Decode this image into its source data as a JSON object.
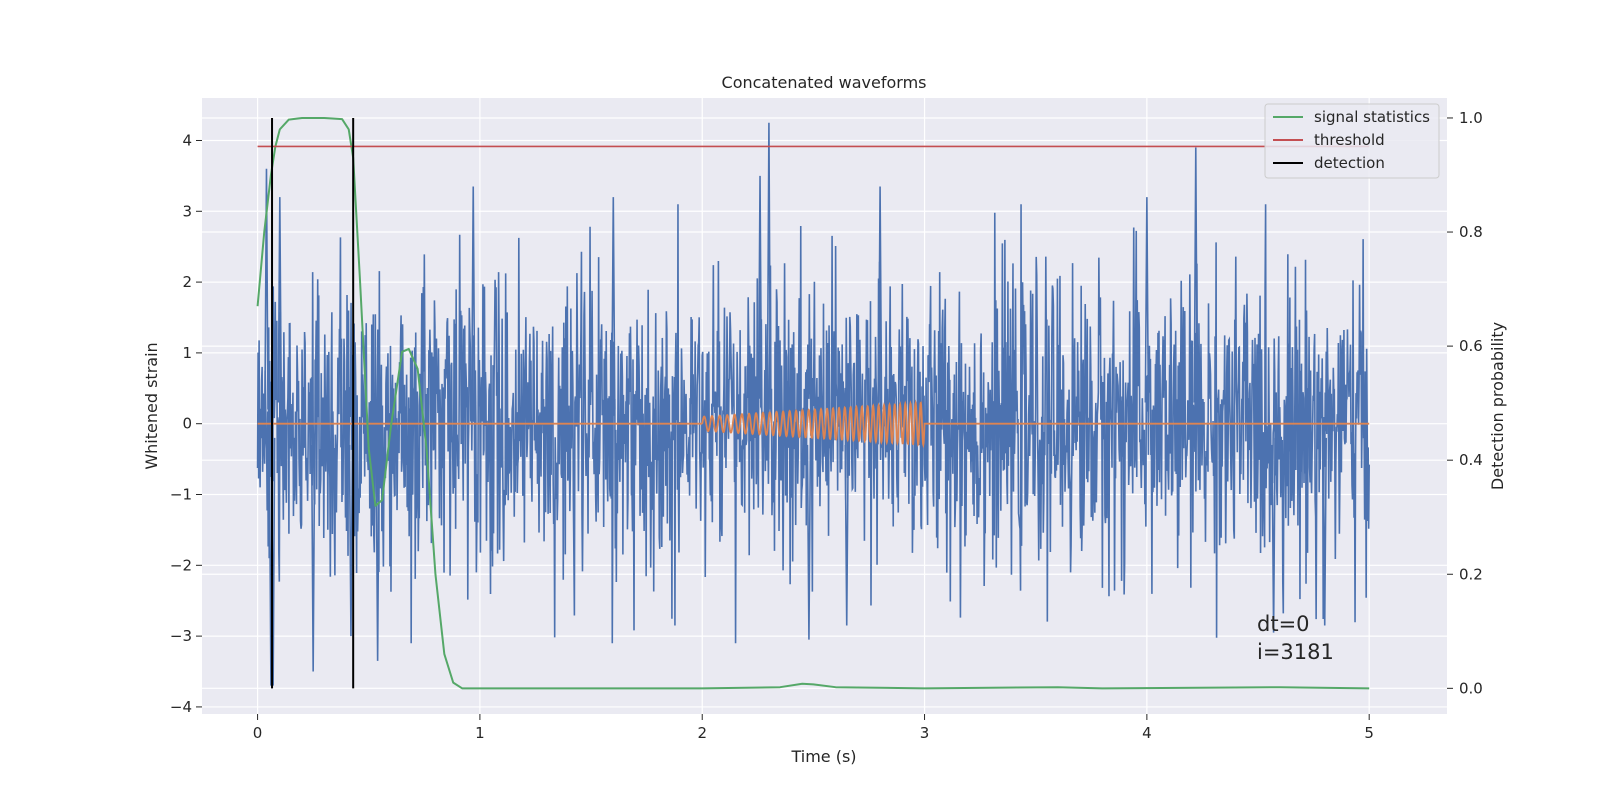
{
  "chart_data": {
    "type": "line",
    "title": "Concatenated waveforms",
    "xlabel": "Time (s)",
    "ylabel": "Whitened strain",
    "y2label": "Detection probability",
    "xlim": [
      -0.25,
      5.35
    ],
    "ylim": [
      -4.1,
      4.6
    ],
    "y2lim": [
      -0.045,
      1.035
    ],
    "xticks": [
      0,
      1,
      2,
      3,
      4,
      5
    ],
    "yticks": [
      -4,
      -3,
      -2,
      -1,
      0,
      1,
      2,
      3,
      4
    ],
    "y2ticks": [
      0.0,
      0.2,
      0.4,
      0.6,
      0.8,
      1.0
    ],
    "grid": true,
    "legend_position": "upper-right",
    "colors": {
      "background": "#eaeaf2",
      "noise": "#4c72b0",
      "injection": "#dd8452",
      "signal_statistics": "#55a868",
      "threshold": "#c44e52",
      "detection": "#000000"
    },
    "series": [
      {
        "name": "",
        "axis": "left",
        "description": "whitened strain noise, approx. Gaussian, std ~1.0",
        "x_range": [
          0,
          5
        ],
        "std": 1.0,
        "peaks": [
          [
            0.04,
            3.6
          ],
          [
            0.06,
            -3.7
          ],
          [
            0.07,
            -3.7
          ],
          [
            0.1,
            3.2
          ],
          [
            0.25,
            -3.5
          ],
          [
            0.42,
            -3.0
          ],
          [
            0.54,
            -3.35
          ],
          [
            0.97,
            3.35
          ],
          [
            1.6,
            3.2
          ],
          [
            2.3,
            4.25
          ],
          [
            2.26,
            3.5
          ],
          [
            2.48,
            -3.05
          ],
          [
            2.8,
            3.35
          ],
          [
            2.65,
            -2.85
          ],
          [
            4.22,
            3.9
          ],
          [
            4.0,
            3.2
          ],
          [
            4.8,
            -2.85
          ],
          [
            4.57,
            -2.95
          ]
        ]
      },
      {
        "name": "",
        "axis": "left",
        "description": "injected chirp waveform",
        "x": [
          0,
          2,
          3,
          5
        ],
        "amplitude": [
          0,
          0.1,
          0.3,
          0
        ],
        "chirp_start": 2.0,
        "chirp_end": 3.0
      },
      {
        "name": "signal statistics",
        "axis": "right",
        "x": [
          0.0,
          0.03,
          0.06,
          0.08,
          0.1,
          0.14,
          0.2,
          0.3,
          0.38,
          0.41,
          0.43,
          0.46,
          0.5,
          0.53,
          0.56,
          0.6,
          0.65,
          0.68,
          0.72,
          0.76,
          0.8,
          0.84,
          0.88,
          0.92,
          1.0,
          2.0,
          2.35,
          2.45,
          2.5,
          2.6,
          3.0,
          3.6,
          3.8,
          4.6,
          5.0
        ],
        "y": [
          0.67,
          0.8,
          0.9,
          0.95,
          0.98,
          0.997,
          1.0,
          1.0,
          0.998,
          0.98,
          0.93,
          0.72,
          0.42,
          0.32,
          0.33,
          0.46,
          0.59,
          0.595,
          0.56,
          0.42,
          0.2,
          0.06,
          0.01,
          0.0,
          0.0,
          0.0,
          0.002,
          0.008,
          0.007,
          0.002,
          0.0,
          0.002,
          0.0,
          0.002,
          0.0
        ]
      },
      {
        "name": "threshold",
        "axis": "right",
        "x": [
          0,
          5
        ],
        "y": [
          0.95,
          0.95
        ]
      },
      {
        "name": "detection",
        "axis": "right",
        "vlines": [
          0.065,
          0.43
        ],
        "ymin": 0.0,
        "ymax": 1.0
      }
    ],
    "annotations": [
      {
        "text": "dt=0",
        "x": 4.5,
        "y": -2.85
      },
      {
        "text": "i=3181",
        "x": 4.5,
        "y": -3.25
      }
    ]
  }
}
